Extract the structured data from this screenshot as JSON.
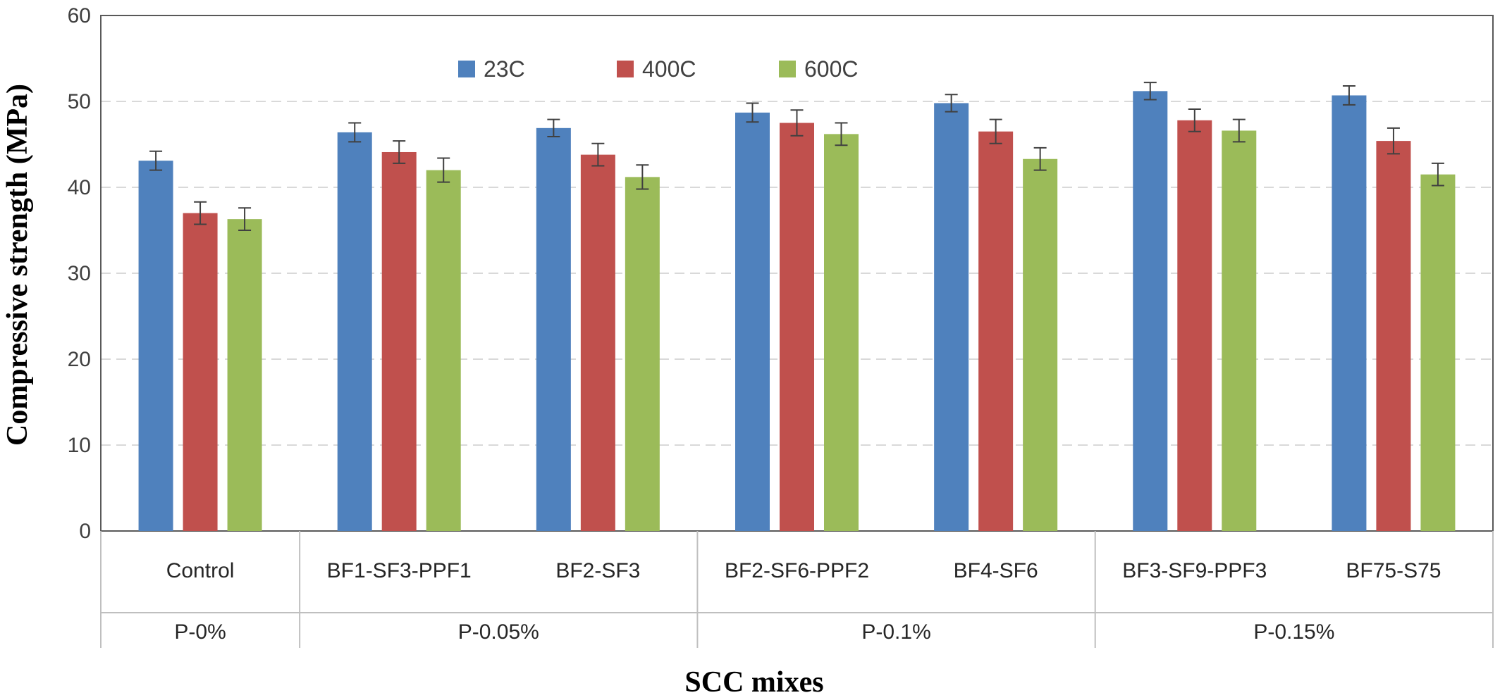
{
  "chart_data": {
    "type": "bar",
    "xlabel": "SCC mixes",
    "ylabel": "Compressive strength (MPa)",
    "ylim": [
      0,
      60
    ],
    "yticks": [
      0,
      10,
      20,
      30,
      40,
      50,
      60
    ],
    "grid": "horizontal-dashed",
    "legend_position": "top",
    "categories": [
      "Control",
      "BF1-SF3-PPF1",
      "BF2-SF3",
      "BF2-SF6-PPF2",
      "BF4-SF6",
      "BF3-SF9-PPF3",
      "BF75-S75"
    ],
    "groups": [
      {
        "label": "P-0%",
        "span": 1
      },
      {
        "label": "P-0.05%",
        "span": 2
      },
      {
        "label": "P-0.1%",
        "span": 2
      },
      {
        "label": "P-0.15%",
        "span": 2
      }
    ],
    "series": [
      {
        "name": "23C",
        "color": "#4F81BD",
        "values": [
          43.1,
          46.4,
          46.9,
          48.7,
          49.8,
          51.2,
          50.7
        ],
        "errors": [
          1.1,
          1.1,
          1.0,
          1.1,
          1.0,
          1.0,
          1.1
        ]
      },
      {
        "name": "400C",
        "color": "#C0504D",
        "values": [
          37.0,
          44.1,
          43.8,
          47.5,
          46.5,
          47.8,
          45.4
        ],
        "errors": [
          1.3,
          1.3,
          1.3,
          1.5,
          1.4,
          1.3,
          1.5
        ]
      },
      {
        "name": "600C",
        "color": "#9BBB59",
        "values": [
          36.3,
          42.0,
          41.2,
          46.2,
          43.3,
          46.6,
          41.5
        ],
        "errors": [
          1.3,
          1.4,
          1.4,
          1.3,
          1.3,
          1.3,
          1.3
        ]
      }
    ]
  }
}
